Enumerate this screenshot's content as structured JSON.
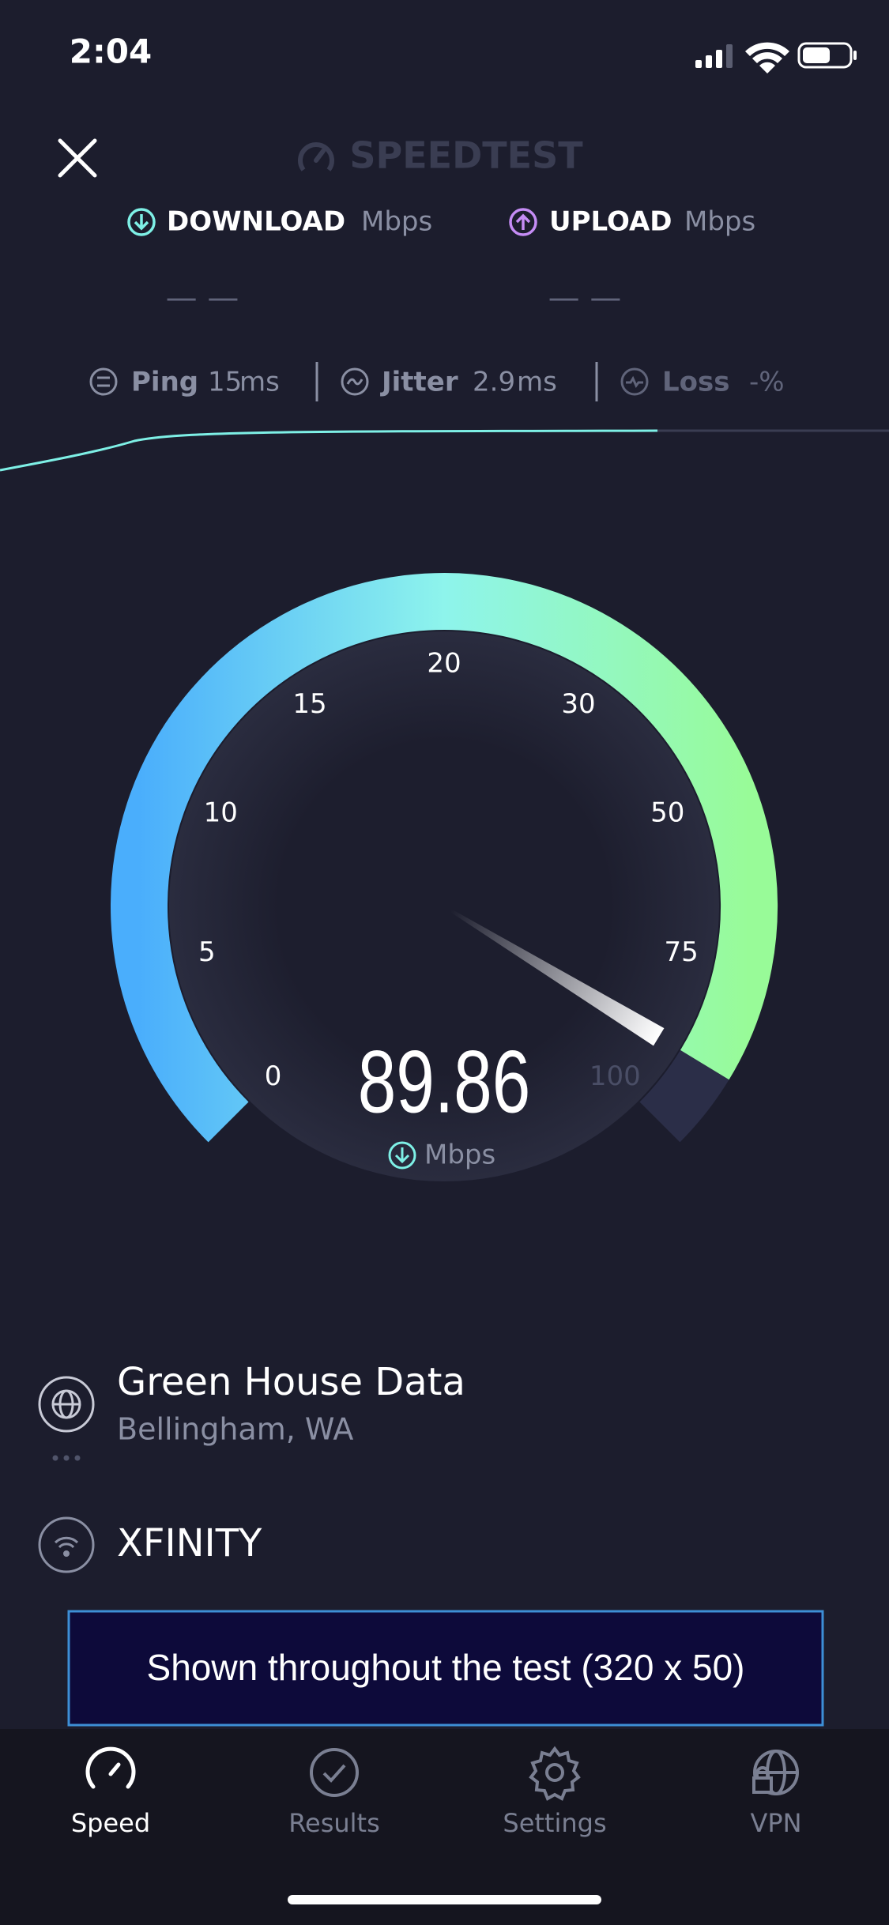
{
  "status_bar": {
    "time": "2:04"
  },
  "header": {
    "title": "SPEEDTEST"
  },
  "metrics": {
    "download": {
      "label": "DOWNLOAD",
      "unit": "Mbps",
      "value": "— —"
    },
    "upload": {
      "label": "UPLOAD",
      "unit": "Mbps",
      "value": "— —"
    }
  },
  "stats": [
    {
      "label": "Ping",
      "value": "15",
      "unit": "ms"
    },
    {
      "label": "Jitter",
      "value": "2.9",
      "unit": "ms"
    },
    {
      "label": "Loss",
      "value": "-%"
    }
  ],
  "gauge": {
    "ticks": [
      0,
      5,
      10,
      15,
      20,
      30,
      50,
      75,
      100
    ],
    "value": "89.86",
    "unit": "Mbps"
  },
  "server": {
    "name": "Green House Data",
    "location": "Bellingham, WA"
  },
  "isp": {
    "name": "XFINITY"
  },
  "ad": {
    "text": "Shown throughout the test (320 x 50)"
  },
  "tabs": [
    {
      "label": "Speed"
    },
    {
      "label": "Results"
    },
    {
      "label": "Settings"
    },
    {
      "label": "VPN"
    }
  ]
}
